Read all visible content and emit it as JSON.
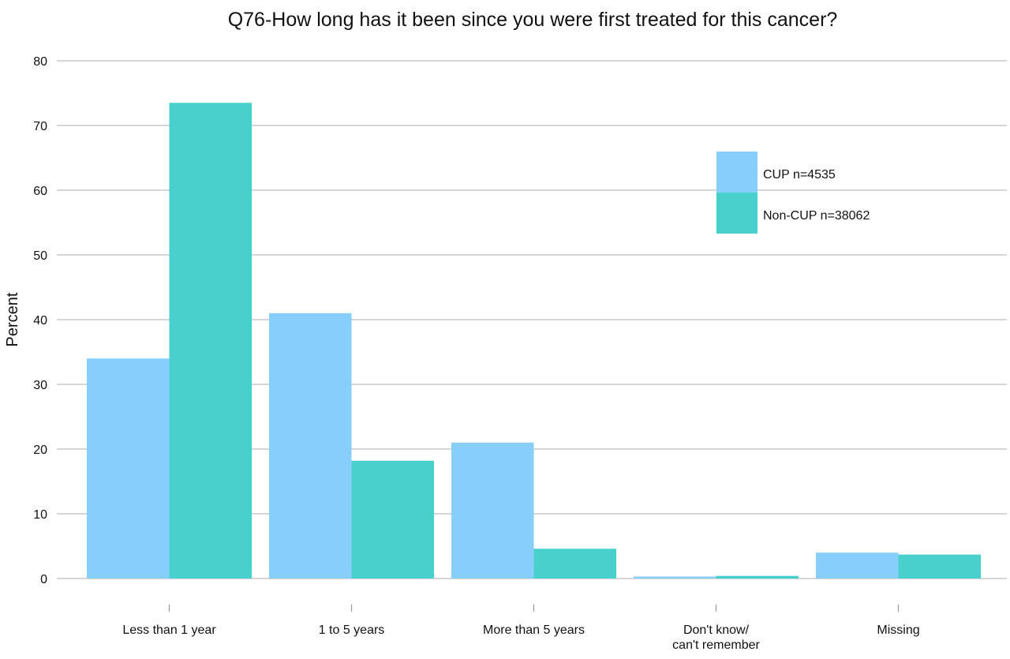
{
  "chart_data": {
    "type": "bar",
    "title": "Q76-How long has it been since you were first treated for this cancer?",
    "xlabel": "",
    "ylabel": "Percent",
    "ylim": [
      0,
      80
    ],
    "yticks": [
      "0",
      "10",
      "20",
      "30",
      "40",
      "50",
      "60",
      "70",
      "80"
    ],
    "grid": true,
    "legend_position": "top-right",
    "categories": [
      [
        "Less than 1 year"
      ],
      [
        "1 to 5 years"
      ],
      [
        "More than 5 years"
      ],
      [
        "Don't know/",
        "can't remember"
      ],
      [
        "Missing"
      ]
    ],
    "series": [
      {
        "name": "CUP n=4535",
        "color": "#87cefa",
        "values": [
          34.0,
          41.0,
          21.0,
          0.3,
          4.0
        ]
      },
      {
        "name": "Non-CUP n=38062",
        "color": "#48d1cc",
        "values": [
          73.5,
          18.2,
          4.6,
          0.4,
          3.7
        ]
      }
    ]
  }
}
